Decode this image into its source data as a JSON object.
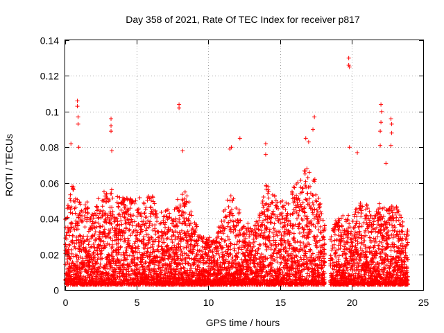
{
  "chart_data": {
    "type": "scatter",
    "title": "Day 358 of 2021, Rate Of TEC Index for receiver p817",
    "xlabel": "GPS time / hours",
    "ylabel": "ROTI / TECUs",
    "xlim": [
      0,
      25
    ],
    "ylim": [
      0,
      0.14
    ],
    "x_ticks": [
      0,
      5,
      10,
      15,
      20,
      25
    ],
    "x_tick_labels": [
      "0",
      "5",
      "10",
      "15",
      "20",
      "25"
    ],
    "y_ticks": [
      0,
      0.02,
      0.04,
      0.06,
      0.08,
      0.1,
      0.12,
      0.14
    ],
    "y_tick_labels": [
      "0",
      "0.02",
      "0.04",
      "0.06",
      "0.08",
      "0.1",
      "0.12",
      "0.14"
    ],
    "grid": true,
    "marker": "+",
    "marker_color": "#ff0000",
    "series": [
      {
        "name": "ROTI",
        "envelope_hour_vs_upper_roti": [
          [
            0.0,
            0.04
          ],
          [
            0.5,
            0.06
          ],
          [
            1.0,
            0.05
          ],
          [
            1.5,
            0.05
          ],
          [
            2.0,
            0.045
          ],
          [
            2.5,
            0.055
          ],
          [
            3.0,
            0.058
          ],
          [
            3.5,
            0.055
          ],
          [
            4.0,
            0.052
          ],
          [
            4.5,
            0.055
          ],
          [
            5.0,
            0.05
          ],
          [
            5.5,
            0.055
          ],
          [
            6.0,
            0.055
          ],
          [
            6.5,
            0.045
          ],
          [
            7.0,
            0.045
          ],
          [
            7.5,
            0.045
          ],
          [
            8.0,
            0.055
          ],
          [
            8.5,
            0.055
          ],
          [
            9.0,
            0.04
          ],
          [
            9.5,
            0.03
          ],
          [
            10.0,
            0.03
          ],
          [
            10.5,
            0.03
          ],
          [
            11.0,
            0.045
          ],
          [
            11.5,
            0.055
          ],
          [
            12.0,
            0.048
          ],
          [
            12.5,
            0.04
          ],
          [
            13.0,
            0.035
          ],
          [
            13.5,
            0.04
          ],
          [
            14.0,
            0.06
          ],
          [
            14.5,
            0.055
          ],
          [
            15.0,
            0.05
          ],
          [
            15.5,
            0.05
          ],
          [
            16.0,
            0.06
          ],
          [
            16.5,
            0.065
          ],
          [
            17.0,
            0.07
          ],
          [
            17.5,
            0.065
          ],
          [
            18.0,
            0.04
          ],
          [
            18.5,
            0.035
          ],
          [
            19.0,
            0.04
          ],
          [
            19.5,
            0.045
          ],
          [
            20.0,
            0.04
          ],
          [
            20.5,
            0.05
          ],
          [
            21.0,
            0.05
          ],
          [
            21.5,
            0.04
          ],
          [
            22.0,
            0.05
          ],
          [
            22.5,
            0.045
          ],
          [
            23.0,
            0.05
          ],
          [
            23.5,
            0.04
          ],
          [
            24.0,
            0.035
          ]
        ],
        "outliers": [
          [
            0.85,
            0.106
          ],
          [
            0.85,
            0.103
          ],
          [
            0.9,
            0.097
          ],
          [
            0.9,
            0.093
          ],
          [
            0.4,
            0.082
          ],
          [
            0.95,
            0.08
          ],
          [
            3.2,
            0.096
          ],
          [
            3.2,
            0.092
          ],
          [
            3.2,
            0.089
          ],
          [
            3.25,
            0.078
          ],
          [
            7.95,
            0.104
          ],
          [
            7.95,
            0.102
          ],
          [
            8.2,
            0.078
          ],
          [
            11.6,
            0.08
          ],
          [
            11.5,
            0.079
          ],
          [
            12.2,
            0.085
          ],
          [
            14.0,
            0.082
          ],
          [
            14.0,
            0.076
          ],
          [
            16.8,
            0.085
          ],
          [
            17.0,
            0.083
          ],
          [
            17.4,
            0.097
          ],
          [
            17.3,
            0.09
          ],
          [
            19.8,
            0.13
          ],
          [
            19.8,
            0.126
          ],
          [
            19.85,
            0.125
          ],
          [
            20.4,
            0.077
          ],
          [
            22.05,
            0.104
          ],
          [
            22.1,
            0.1
          ],
          [
            22.05,
            0.094
          ],
          [
            22.0,
            0.089
          ],
          [
            22.0,
            0.081
          ],
          [
            22.75,
            0.096
          ],
          [
            22.8,
            0.093
          ],
          [
            22.8,
            0.088
          ],
          [
            22.75,
            0.081
          ],
          [
            22.4,
            0.071
          ],
          [
            19.85,
            0.08
          ]
        ],
        "data_gaps_hours": [
          [
            18.15,
            18.5
          ],
          [
            23.95,
            24.0
          ]
        ]
      }
    ]
  }
}
